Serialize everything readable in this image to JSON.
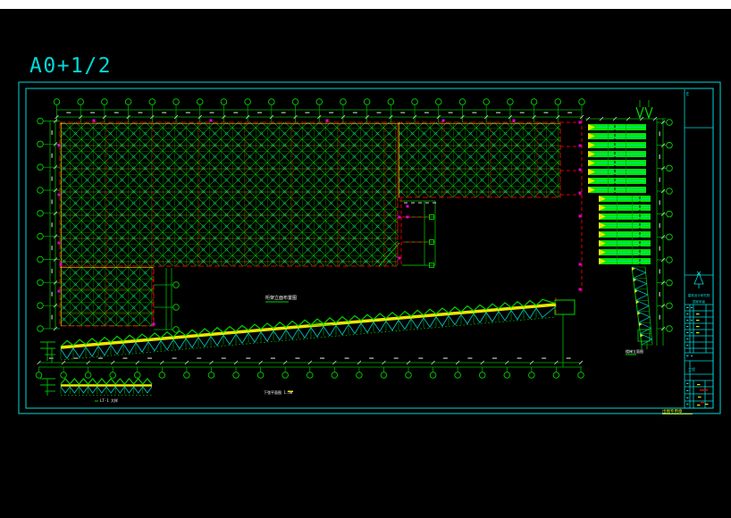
{
  "sheet": {
    "title": "A0+1/2"
  },
  "colors": {
    "background": "#000000",
    "top_strip": "#ffffff",
    "frame": "#00d9d9",
    "green": "#00c000",
    "bright_green": "#00ee00",
    "yellow": "#e8e800",
    "red": "#dd0000",
    "magenta": "#dd00dd",
    "cyan": "#00d9d9",
    "white": "#ffffff"
  },
  "labels": {
    "plan_note": "桁架立面布置图",
    "under_truss_note": "下弦平面图 1:50",
    "small_truss_note": "LT-1 大样",
    "stair_note": "楼梯立面图",
    "titleblock": {
      "mark": "E",
      "firm_line1": "建筑设计研究院",
      "firm_line2": "国家甲级",
      "project": "工程",
      "bottom_note": "出图专用章"
    }
  },
  "axes": {
    "top": {
      "count": 23
    },
    "bottom": {
      "count": 23
    },
    "left": {
      "count": 10
    },
    "right": {
      "count": 10
    },
    "mid": {
      "count": 3
    },
    "sub_right": {
      "count": 3
    }
  }
}
